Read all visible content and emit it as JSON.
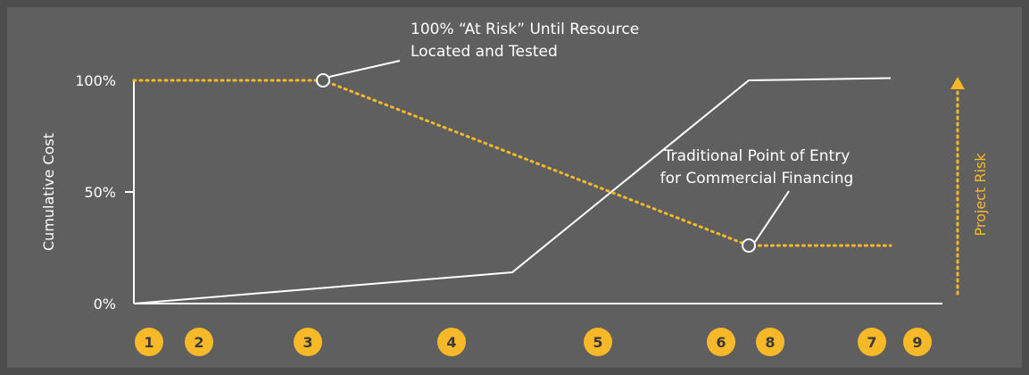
{
  "colors": {
    "background": "#5f5f5f",
    "outer": "#4d4d4d",
    "cost_line": "#ffffff",
    "risk_line": "#f7b928",
    "badge_fill": "#f7b928",
    "badge_text": "#3a3a3a"
  },
  "chart_data": {
    "type": "line",
    "ylabel": "Cumulative Cost",
    "y_ticks": [
      "0%",
      "50%",
      "100%"
    ],
    "ylim": [
      0,
      100
    ],
    "xlim": [
      1,
      9
    ],
    "x_markers": [
      "1",
      "2",
      "3",
      "4",
      "5",
      "6",
      "8",
      "7",
      "9"
    ],
    "series": [
      {
        "values": [
          {
            "x": 1,
            "y": 0
          },
          {
            "x": 5,
            "y": 14
          },
          {
            "x": 7.5,
            "y": 100
          },
          {
            "x": 9,
            "y": 101
          }
        ]
      },
      {
        "values": [
          {
            "x": 1,
            "y": 100
          },
          {
            "x": 3,
            "y": 100
          },
          {
            "x": 7.5,
            "y": 26
          },
          {
            "x": 9,
            "y": 26
          }
        ]
      }
    ],
    "secondary_axis_label": "Project Risk",
    "annotations": [
      {
        "text_lines": [
          "100% “At Risk” Until Resource",
          "Located and Tested"
        ],
        "x": 3,
        "y": 100
      },
      {
        "text_lines": [
          "Traditional Point of Entry",
          "for Commercial Financing"
        ],
        "x": 7.5,
        "y": 26
      }
    ]
  }
}
